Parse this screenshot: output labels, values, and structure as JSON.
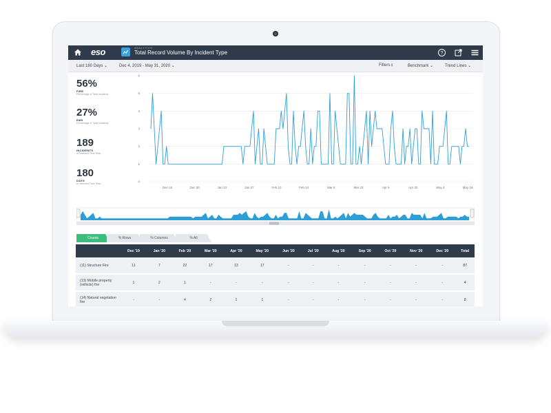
{
  "app": {
    "logo": "eso",
    "breadcrumb": "ANALYTICS",
    "title": "Total Record Volume By Incident Type"
  },
  "toolbar": {
    "range": "Last 180 Days",
    "dates": "Dec 4, 2019  -  May 31, 2020",
    "filters": "Filters",
    "benchmark": "Benchmark",
    "trend": "Trend Lines"
  },
  "stats": [
    {
      "value": "56%",
      "label": "FIRE",
      "sub": "Percentage of Total Incidents"
    },
    {
      "value": "27%",
      "label": "EMS",
      "sub": "Percentage of Total Incidents"
    },
    {
      "value": "189",
      "label": "INCIDENTS",
      "sub": "In Selected Time Slice"
    },
    {
      "value": "180",
      "label": "DAYS",
      "sub": "In Selected Time Slice"
    }
  ],
  "colors": {
    "nav": "#2f3a4b",
    "series": "#2e9ed6",
    "accent": "#3dbd7d"
  },
  "chart_data": {
    "type": "line",
    "ylim": [
      0,
      6
    ],
    "yticks": [
      "0",
      "1",
      "2",
      "3",
      "4",
      "5",
      "6"
    ],
    "xticks": [
      "Dec 16",
      "Dec 30",
      "Jan 13",
      "Jan 27",
      "Feb 10",
      "Feb 24",
      "Mar 9",
      "Mar 23",
      "Apr 6",
      "Apr 20",
      "May 4",
      "May 18"
    ],
    "series": [
      {
        "values": [
          3,
          5,
          3,
          1,
          2,
          3,
          4,
          1,
          1,
          2,
          1,
          1,
          1,
          1,
          1,
          1,
          1,
          1,
          1,
          1,
          1,
          1,
          1,
          1,
          1,
          1,
          1,
          1,
          1,
          1,
          1,
          1,
          1,
          1,
          1,
          1,
          1,
          1,
          1,
          1,
          1,
          1,
          2,
          2,
          2,
          2,
          2,
          2,
          2,
          2,
          2,
          2,
          2,
          1,
          2,
          2,
          2,
          2,
          3,
          4,
          1,
          2,
          3,
          1,
          1,
          3,
          2,
          1,
          1,
          1,
          1,
          1,
          3,
          3,
          3,
          4,
          3,
          4,
          5,
          2,
          1,
          1,
          4,
          2,
          1,
          2,
          2,
          3,
          4,
          2,
          1,
          1,
          3,
          1,
          2,
          2,
          4,
          4,
          1,
          1,
          1,
          1,
          1,
          5,
          1,
          1,
          4,
          3,
          2,
          1,
          1,
          1,
          1,
          5,
          5,
          1,
          1,
          6,
          1,
          1,
          2,
          1,
          2,
          3,
          4,
          1,
          4,
          2,
          3,
          4,
          3,
          3,
          3,
          3,
          2,
          1,
          1,
          1,
          3,
          4,
          2,
          1,
          1,
          1,
          1,
          3,
          1,
          2,
          2,
          3,
          1,
          2,
          3,
          3,
          1,
          1,
          4,
          3,
          3,
          3,
          3,
          1,
          4,
          1,
          1,
          1,
          2,
          2,
          2,
          3,
          4,
          1,
          1,
          2,
          2,
          2,
          2,
          2,
          1,
          2,
          2,
          3,
          2,
          2
        ]
      }
    ]
  },
  "tabs": [
    "Counts",
    "% Rows",
    "% Columns",
    "% All"
  ],
  "table": {
    "headers": [
      "",
      "Dec '19",
      "Jan '20",
      "Feb '20",
      "Mar '20",
      "Apr '20",
      "May '20",
      "Jun '20",
      "Jul '20",
      "Aug '20",
      "Sep '20",
      "Oct '20",
      "Nov '20",
      "Dec '20",
      "Total"
    ],
    "rows": [
      [
        "(11) Structure Fire",
        "11",
        "7",
        "22",
        "17",
        "13",
        "17",
        "-",
        "-",
        "-",
        "-",
        "-",
        "-",
        "-",
        "87"
      ],
      [
        "(13) Mobile property (vehicle) fire",
        "1",
        "2",
        "1",
        "-",
        "-",
        "-",
        "-",
        "-",
        "-",
        "-",
        "-",
        "-",
        "-",
        "4"
      ],
      [
        "(14) Natural vegetation fire",
        "-",
        "-",
        "4",
        "2",
        "1",
        "1",
        "-",
        "-",
        "-",
        "-",
        "-",
        "-",
        "-",
        "8"
      ]
    ]
  }
}
